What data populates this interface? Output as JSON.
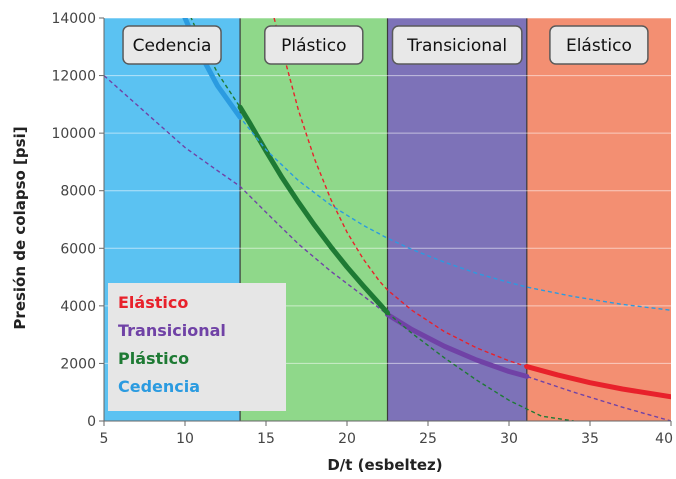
{
  "chart_data": {
    "type": "line",
    "xlabel": "D/t  (esbeltez)",
    "ylabel": "Presión de colapso [psi]",
    "xlim": [
      5,
      40
    ],
    "ylim": [
      0,
      14000
    ],
    "x_ticks": [
      5,
      10,
      15,
      20,
      25,
      30,
      35,
      40
    ],
    "x_tick_labels": [
      "5",
      "10",
      "15",
      "20",
      "25",
      "30",
      "35",
      "40"
    ],
    "y_ticks": [
      0,
      2000,
      4000,
      6000,
      8000,
      10000,
      12000,
      14000
    ],
    "y_tick_labels": [
      "0",
      "2000",
      "4000",
      "6000",
      "8000",
      "10000",
      "12000",
      "14000"
    ],
    "grid": true,
    "zones": [
      {
        "label": "Cedencia",
        "x_start": 5,
        "x_end": 13.4,
        "color": "#5bc2f2"
      },
      {
        "label": "Plástico",
        "x_start": 13.4,
        "x_end": 22.5,
        "color": "#8fd88a"
      },
      {
        "label": "Transicional",
        "x_start": 22.5,
        "x_end": 31.1,
        "color": "#7d72b8"
      },
      {
        "label": "Elástico",
        "x_start": 31.1,
        "x_end": 40,
        "color": "#f38f72"
      }
    ],
    "series": [
      {
        "name": "Elástico",
        "color": "#e8212b",
        "x": [
          15.5,
          16,
          17,
          18,
          19,
          20,
          21,
          22,
          22.5,
          24,
          26,
          28,
          30,
          31.1,
          33,
          35,
          37,
          40
        ],
        "y": [
          14000,
          12900,
          10800,
          9100,
          7700,
          6560,
          5630,
          4860,
          4550,
          3850,
          3110,
          2540,
          2090,
          1890,
          1600,
          1330,
          1110,
          840
        ]
      },
      {
        "name": "Transicional",
        "color": "#7042a6",
        "x": [
          5,
          8,
          10,
          12,
          13.4,
          15,
          17,
          19,
          21,
          22.5,
          24,
          26,
          28,
          30,
          31.1,
          34,
          37,
          40
        ],
        "y": [
          12000,
          10500,
          9500,
          8700,
          8150,
          7250,
          6150,
          5200,
          4350,
          3700,
          3180,
          2600,
          2120,
          1720,
          1550,
          1000,
          480,
          0
        ]
      },
      {
        "name": "Plástico",
        "color": "#1e7a34",
        "x": [
          10,
          11,
          12,
          13.4,
          14,
          15,
          16,
          17,
          18,
          19,
          20,
          21,
          22.5,
          24,
          26,
          28,
          30,
          32,
          34
        ],
        "y": [
          14500,
          13200,
          12100,
          10900,
          10350,
          9380,
          8450,
          7600,
          6800,
          6050,
          5350,
          4700,
          3760,
          3050,
          2200,
          1420,
          720,
          170,
          0
        ]
      },
      {
        "name": "Cedencia",
        "color": "#2b9be0",
        "x": [
          10,
          11,
          12,
          13.4,
          15,
          17,
          19,
          21,
          22.5,
          24,
          26,
          28,
          30,
          31.1,
          34,
          37,
          40
        ],
        "y": [
          14000,
          12700,
          11650,
          10550,
          9420,
          8350,
          7500,
          6800,
          6350,
          5960,
          5520,
          5130,
          4810,
          4650,
          4320,
          4050,
          3850
        ]
      }
    ],
    "legend": {
      "placement": "bottom-left",
      "entries": [
        {
          "label": "Elástico",
          "color": "#e8212b"
        },
        {
          "label": "Transicional",
          "color": "#7042a6"
        },
        {
          "label": "Plástico",
          "color": "#1e7a34"
        },
        {
          "label": "Cedencia",
          "color": "#2b9be0"
        }
      ]
    }
  }
}
